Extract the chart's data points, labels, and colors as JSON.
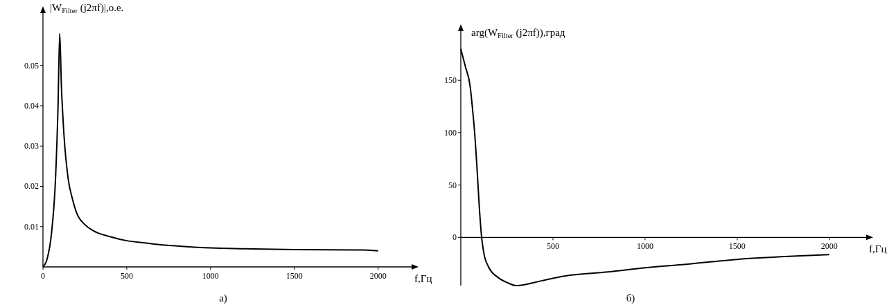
{
  "chart_data": [
    {
      "type": "line",
      "xlabel": "f,Гц",
      "ylabel": "|W$_{Filter}$ (j2πf)|,о.е.",
      "annotations": [
        "а)"
      ],
      "xlim": [
        0,
        2200
      ],
      "ylim": [
        0,
        0.063
      ],
      "xticks": [
        0,
        500,
        1000,
        1500,
        2000
      ],
      "yticks": [
        0.01,
        0.02,
        0.03,
        0.04,
        0.05
      ],
      "grid": false,
      "series": [
        {
          "color": "#000000",
          "x": [
            0,
            25,
            50,
            75,
            90,
            100,
            110,
            125,
            150,
            175,
            200,
            250,
            300,
            400,
            500,
            600,
            700,
            800,
            1000,
            1200,
            1500,
            1900,
            2000
          ],
          "values": [
            0,
            0.002,
            0.008,
            0.022,
            0.04,
            0.058,
            0.045,
            0.033,
            0.022,
            0.017,
            0.0135,
            0.0105,
            0.009,
            0.0075,
            0.0065,
            0.006,
            0.0055,
            0.0052,
            0.0047,
            0.0045,
            0.0043,
            0.0042,
            0.004
          ]
        }
      ]
    },
    {
      "type": "line",
      "xlabel": "f,Гц",
      "ylabel": "arg(W$_{Filter}$ (j2πf)),град",
      "annotations": [
        "б)"
      ],
      "xlim": [
        0,
        2200
      ],
      "ylim": [
        -46,
        197
      ],
      "xticks": [
        500,
        1000,
        1500,
        2000
      ],
      "yticks": [
        0,
        50,
        100,
        150
      ],
      "grid": false,
      "series": [
        {
          "color": "#000000",
          "x": [
            0,
            25,
            50,
            65,
            75,
            90,
            100,
            113,
            125,
            150,
            200,
            250,
            300,
            350,
            400,
            500,
            600,
            800,
            1000,
            1200,
            1500,
            1800,
            2000
          ],
          "values": [
            180,
            163,
            145,
            120,
            100,
            60,
            30,
            0,
            -15,
            -28,
            -38,
            -43,
            -46,
            -45,
            -43,
            -39,
            -36,
            -33,
            -29,
            -26,
            -21,
            -18,
            -16.5
          ]
        }
      ]
    }
  ]
}
